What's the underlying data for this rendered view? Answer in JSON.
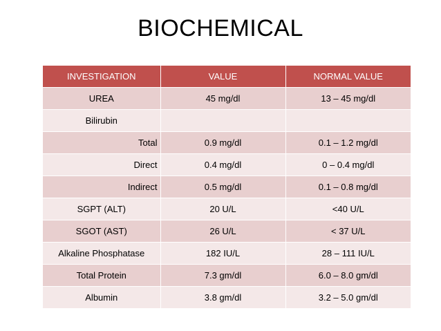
{
  "title": "BIOCHEMICAL",
  "table": {
    "headers": [
      "INVESTIGATION",
      "VALUE",
      "NORMAL VALUE"
    ],
    "rows": [
      {
        "investigation": "UREA",
        "value": "45 mg/dl",
        "normal": "13 – 45 mg/dl"
      },
      {
        "investigation": "Bilirubin",
        "value": "",
        "normal": ""
      },
      {
        "investigation": "Total",
        "value": "0.9 mg/dl",
        "normal": "0.1 – 1.2 mg/dl"
      },
      {
        "investigation": "Direct",
        "value": "0.4 mg/dl",
        "normal": "0 – 0.4 mg/dl"
      },
      {
        "investigation": "Indirect",
        "value": "0.5 mg/dl",
        "normal": "0.1 – 0.8 mg/dl"
      },
      {
        "investigation": "SGPT (ALT)",
        "value": "20 U/L",
        "normal": "<40 U/L"
      },
      {
        "investigation": "SGOT (AST)",
        "value": "26 U/L",
        "normal": "< 37 U/L"
      },
      {
        "investigation": "Alkaline Phosphatase",
        "value": "182 IU/L",
        "normal": "28 – 111 IU/L"
      },
      {
        "investigation": "Total Protein",
        "value": "7.3 gm/dl",
        "normal": "6.0 – 8.0 gm/dl"
      },
      {
        "investigation": "Albumin",
        "value": "3.8 gm/dl",
        "normal": "3.2 – 5.0 gm/dl"
      }
    ]
  },
  "colors": {
    "header_bg": "#c0504d",
    "band_dark": "#e8cfcf",
    "band_light": "#f4e8e8"
  }
}
